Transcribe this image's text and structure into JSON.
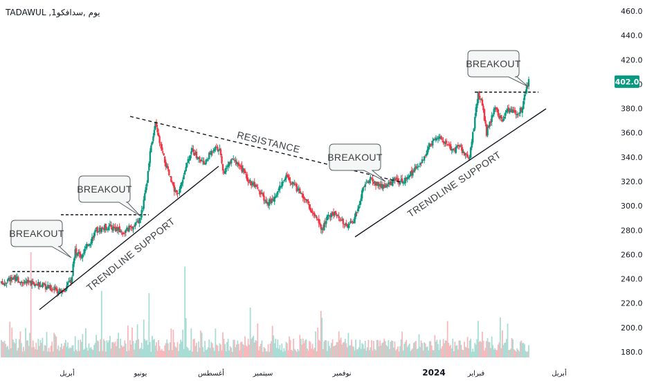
{
  "header": {
    "title": "TADAWUL ,1يوم ,سدافكو"
  },
  "price_badge": {
    "value": "402.0",
    "color": "#089981"
  },
  "colors": {
    "up": "#089981",
    "down": "#f23645",
    "vol_up": "#a8dcd4",
    "vol_down": "#f7b8bc",
    "annotation": "#131722"
  },
  "annotations": {
    "breakouts": [
      "BREAKOUT",
      "BREAKOUT",
      "BREAKOUT",
      "BREAKOUT"
    ],
    "resistance": "RESISTANCE",
    "supports": [
      "TRENDLINE SUPPORT",
      "TRENDLINE SUPPORT"
    ]
  },
  "chart_data": {
    "type": "candlestick",
    "title": "TADAWUL ,1يوم ,سدافكو",
    "ylim": [
      175,
      465
    ],
    "y_ticks": [
      180,
      200,
      220,
      240,
      260,
      280,
      300,
      320,
      340,
      360,
      380,
      400,
      420,
      440,
      460
    ],
    "y_tick_labels": [
      "180.0",
      "200.0",
      "220.0",
      "240.0",
      "260.0",
      "280.0",
      "300.0",
      "320.0",
      "340.0",
      "360.0",
      "380.0",
      "400.0",
      "420.0",
      "440.0",
      "460.0"
    ],
    "x_tick_labels": [
      "أبريل",
      "يونيو",
      "أغسطس",
      "سبتمبر",
      "نوفمبر",
      "2024",
      "فبراير",
      "أبريل"
    ],
    "last_price": 402.0,
    "price_path_keypoints": [
      [
        0,
        236
      ],
      [
        10,
        241
      ],
      [
        20,
        238
      ],
      [
        30,
        236
      ],
      [
        45,
        233
      ],
      [
        58,
        229
      ],
      [
        66,
        238
      ],
      [
        70,
        262
      ],
      [
        75,
        258
      ],
      [
        82,
        268
      ],
      [
        90,
        280
      ],
      [
        100,
        283
      ],
      [
        108,
        282
      ],
      [
        115,
        278
      ],
      [
        122,
        282
      ],
      [
        130,
        286
      ],
      [
        134,
        297
      ],
      [
        138,
        320
      ],
      [
        142,
        350
      ],
      [
        146,
        367
      ],
      [
        152,
        345
      ],
      [
        158,
        328
      ],
      [
        164,
        312
      ],
      [
        168,
        308
      ],
      [
        174,
        330
      ],
      [
        180,
        346
      ],
      [
        186,
        340
      ],
      [
        192,
        334
      ],
      [
        198,
        343
      ],
      [
        203,
        350
      ],
      [
        207,
        345
      ],
      [
        211,
        325
      ],
      [
        216,
        336
      ],
      [
        222,
        336
      ],
      [
        228,
        330
      ],
      [
        234,
        322
      ],
      [
        240,
        316
      ],
      [
        246,
        310
      ],
      [
        252,
        302
      ],
      [
        258,
        306
      ],
      [
        264,
        316
      ],
      [
        270,
        324
      ],
      [
        276,
        318
      ],
      [
        282,
        312
      ],
      [
        288,
        306
      ],
      [
        294,
        296
      ],
      [
        300,
        288
      ],
      [
        304,
        281
      ],
      [
        310,
        292
      ],
      [
        316,
        294
      ],
      [
        322,
        287
      ],
      [
        328,
        284
      ],
      [
        334,
        288
      ],
      [
        339,
        300
      ],
      [
        344,
        318
      ],
      [
        350,
        322
      ],
      [
        356,
        318
      ],
      [
        362,
        316
      ],
      [
        368,
        318
      ],
      [
        374,
        322
      ],
      [
        380,
        320
      ],
      [
        386,
        324
      ],
      [
        392,
        330
      ],
      [
        398,
        336
      ],
      [
        404,
        346
      ],
      [
        410,
        354
      ],
      [
        416,
        357
      ],
      [
        422,
        350
      ],
      [
        428,
        345
      ],
      [
        434,
        350
      ],
      [
        438,
        344
      ],
      [
        444,
        340
      ],
      [
        449,
        372
      ],
      [
        452,
        392
      ],
      [
        456,
        384
      ],
      [
        460,
        360
      ],
      [
        464,
        370
      ],
      [
        468,
        380
      ],
      [
        474,
        370
      ],
      [
        480,
        380
      ],
      [
        486,
        378
      ],
      [
        490,
        376
      ],
      [
        494,
        380
      ],
      [
        497,
        395
      ],
      [
        500,
        402
      ]
    ],
    "volume_scale": "relative (0-1)",
    "volume_spikes": [
      [
        28,
        0.95
      ],
      [
        95,
        0.6
      ],
      [
        140,
        0.58
      ],
      [
        174,
        0.82
      ],
      [
        236,
        0.45
      ],
      [
        303,
        0.42
      ],
      [
        452,
        0.33
      ]
    ]
  }
}
